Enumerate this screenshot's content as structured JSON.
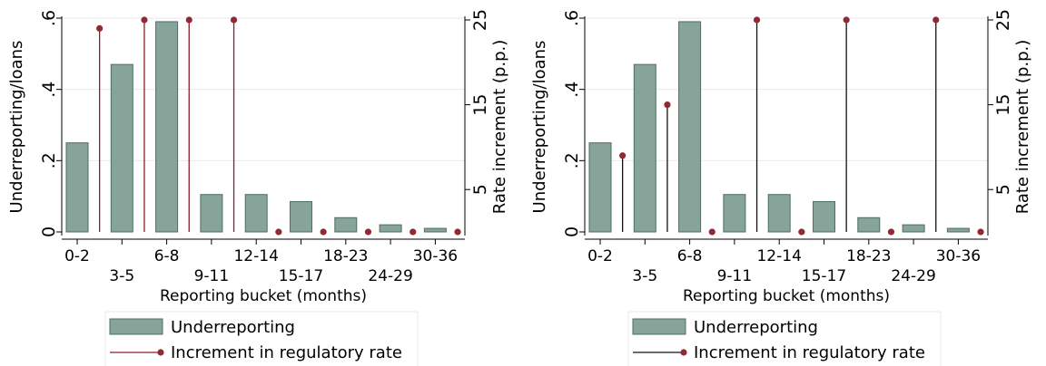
{
  "colors": {
    "bar_fill": "#87a49a",
    "bar_stroke": "#4d6e62",
    "stem_left": "#8b1e2b",
    "stem_right": "#111111",
    "marker": "#8e2a33",
    "grid": "#eaeaea"
  },
  "chart_data": [
    {
      "type": "bar",
      "categories": [
        "0-2",
        "3-5",
        "6-8",
        "9-11",
        "12-14",
        "15-17",
        "18-23",
        "24-29",
        "30-36"
      ],
      "xlabel": "Reporting bucket (months)",
      "ylabel": "Underreporting/loans",
      "y2label": "Rate increment (p.p.)",
      "ylim": [
        0,
        0.6
      ],
      "y2lim": [
        0,
        25
      ],
      "yticks": [
        ".6",
        ".4",
        ".2",
        "0"
      ],
      "y2ticks": [
        "25",
        "15",
        "5"
      ],
      "grid": true,
      "legend_position": "bottom",
      "series": [
        {
          "name": "Underreporting",
          "kind": "bar",
          "values": [
            0.25,
            0.47,
            0.59,
            0.105,
            0.105,
            0.085,
            0.04,
            0.02,
            0.01
          ]
        },
        {
          "name": "Increment in regulatory rate",
          "kind": "stem",
          "x": [
            1.5,
            2.5,
            3.5,
            4.5,
            5.5,
            6.5,
            7.5,
            8.5,
            9.5
          ],
          "values": [
            24,
            25,
            25,
            25,
            0,
            0,
            0,
            0,
            0
          ]
        }
      ]
    },
    {
      "type": "bar",
      "categories": [
        "0-2",
        "3-5",
        "6-8",
        "9-11",
        "12-14",
        "15-17",
        "18-23",
        "24-29",
        "30-36"
      ],
      "xlabel": "Reporting bucket (months)",
      "ylabel": "Underreporting/loans",
      "y2label": "Rate increment (p.p.)",
      "ylim": [
        0,
        0.6
      ],
      "y2lim": [
        0,
        25
      ],
      "yticks": [
        ".6",
        ".4",
        ".2",
        "0"
      ],
      "y2ticks": [
        "25",
        "15",
        "5"
      ],
      "grid": true,
      "legend_position": "bottom",
      "series": [
        {
          "name": "Underreporting",
          "kind": "bar",
          "values": [
            0.25,
            0.47,
            0.59,
            0.105,
            0.105,
            0.085,
            0.04,
            0.02,
            0.01
          ]
        },
        {
          "name": "Increment in regulatory rate",
          "kind": "stem",
          "x": [
            1.5,
            2.5,
            3.5,
            4.5,
            5.5,
            6.5,
            7.5,
            8.5,
            9.5
          ],
          "values": [
            9,
            15,
            0,
            25,
            0,
            25,
            0,
            25,
            0
          ]
        }
      ]
    }
  ]
}
